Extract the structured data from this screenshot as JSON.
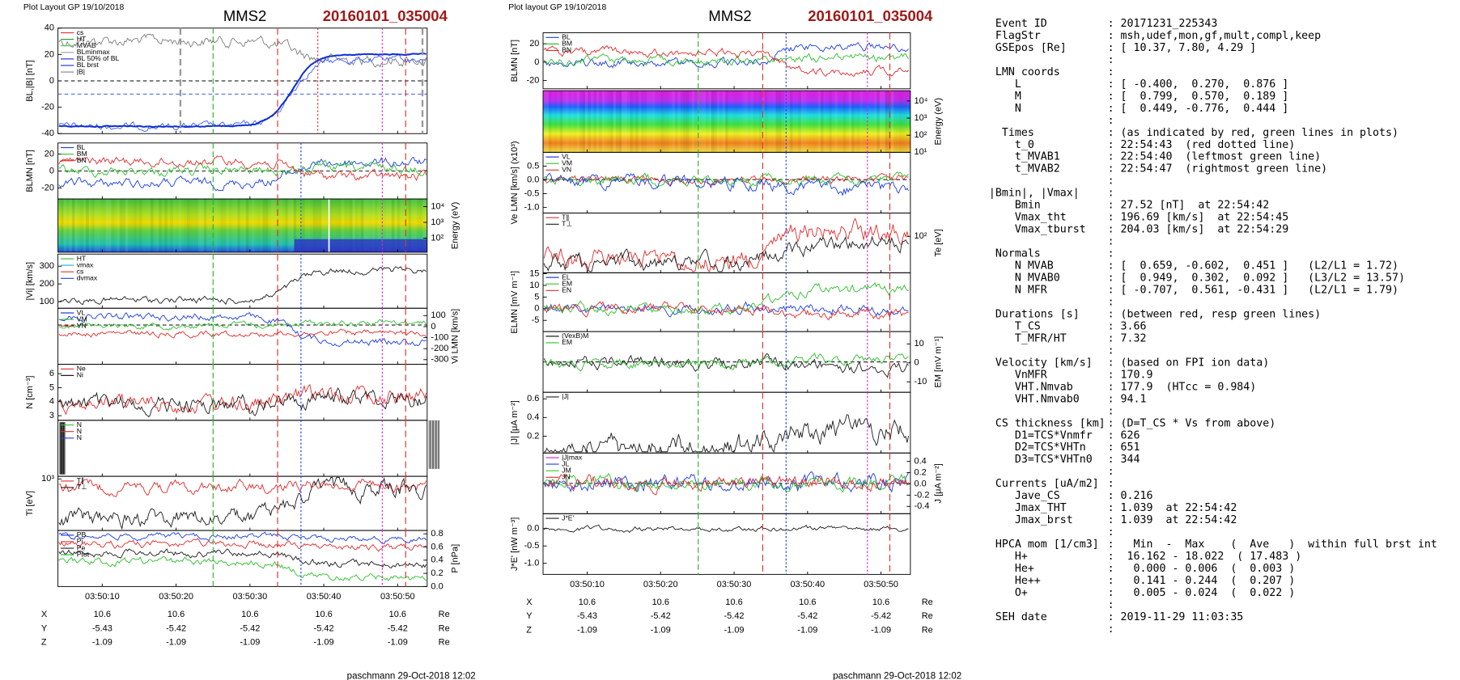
{
  "plots": [
    {
      "header": "Plot Layout GP 19/10/2018",
      "probe": "MMS2",
      "event": "20160101_035004",
      "xlim": [
        "03:50:04",
        "03:50:54"
      ],
      "xticks": [
        "03:50:10",
        "03:50:20",
        "03:50:30",
        "03:50:40",
        "03:50:50"
      ],
      "panels": [
        {
          "ylabel": "BL,|B| [nT]",
          "side": "left",
          "ylim": [
            -40,
            40
          ],
          "yticks": [
            40,
            20,
            0,
            -20,
            -40
          ],
          "legend": [
            {
              "text": "cs",
              "color": "#e03030"
            },
            {
              "text": "HT",
              "color": "#30a030"
            },
            {
              "text": "MVAB",
              "color": "#50d050"
            },
            {
              "text": "BLminmax",
              "color": "#a0a0a0"
            },
            {
              "text": "BL 50% of BL",
              "color": "#3040e0"
            },
            {
              "text": "BL brst",
              "color": "#1030d0"
            },
            {
              "text": "|B|",
              "color": "#808080"
            }
          ]
        },
        {
          "ylabel": "BLMN [nT]",
          "side": "left",
          "ylim": [
            -33,
            33
          ],
          "yticks": [
            20,
            0,
            -20
          ],
          "legend": [
            {
              "text": "BL",
              "color": "#2040e0"
            },
            {
              "text": "BM",
              "color": "#30c030"
            },
            {
              "text": "BN",
              "color": "#e03030"
            }
          ]
        },
        {
          "ylabel": "Energy (eV)",
          "side": "right",
          "kind": "spectrogram",
          "log": true,
          "ylim": [
            13,
            30000
          ],
          "yticks": [
            {
              "value": 10000,
              "label": "10⁴"
            },
            {
              "value": 1000,
              "label": "10³"
            },
            {
              "value": 100,
              "label": "10²"
            }
          ]
        },
        {
          "ylabel": "|Vi| [km/s]",
          "side": "left",
          "ylim": [
            63,
            368
          ],
          "yticks": [
            300,
            200,
            100
          ],
          "legend": [
            {
              "text": "HT",
              "color": "#30c030"
            },
            {
              "text": "vmax",
              "color": "#20b0d0"
            },
            {
              "text": "cs",
              "color": "#e03030"
            },
            {
              "text": "dvmax",
              "color": "#2040e0"
            }
          ]
        },
        {
          "ylabel": "Vi LMN [km/s]",
          "side": "right",
          "ylim": [
            -342,
            167
          ],
          "yticks": [
            100,
            0,
            -100,
            -200,
            -300
          ],
          "legend": [
            {
              "text": "VL",
              "color": "#2040e0"
            },
            {
              "text": "VM",
              "color": "#30c030"
            },
            {
              "text": "VN",
              "color": "#e03030"
            }
          ]
        },
        {
          "ylabel": "N [cm⁻³]",
          "side": "left",
          "ylim": [
            2.67,
            6.67
          ],
          "yticks": [
            6,
            5,
            4,
            3
          ],
          "legend": [
            {
              "text": "Ne",
              "color": "#e03030"
            },
            {
              "text": "Ni",
              "color": "#202020"
            }
          ]
        },
        {
          "side": "left",
          "legend": [
            {
              "text": "N",
              "color": "#30c030"
            },
            {
              "text": "N",
              "color": "#e03030"
            },
            {
              "text": "N",
              "color": "#2040e0"
            }
          ]
        },
        {
          "ylabel": "Ti [eV]",
          "side": "left",
          "log": true,
          "ylim": [
            150,
            1100
          ],
          "yticks": [
            {
              "value": 1000,
              "label": "10³"
            }
          ],
          "legend": [
            {
              "text": "T∥",
              "color": "#e03030"
            },
            {
              "text": "T⊥",
              "color": "#202020"
            }
          ]
        },
        {
          "ylabel": "P [nPa]",
          "side": "right",
          "ylim": [
            0,
            0.85
          ],
          "yticks": [
            0.8,
            0.6,
            0.4,
            0.2,
            {
              "value": 0,
              "label": "0.0"
            }
          ],
          "legend": [
            {
              "text": "PB",
              "color": "#2040e0"
            },
            {
              "text": "Pi",
              "color": "#e03030"
            },
            {
              "text": "Pe",
              "color": "#202020"
            },
            {
              "text": "Ptot",
              "color": "#30c030"
            }
          ]
        }
      ],
      "positions": [
        {
          "name": "X",
          "values": [
            "10.6",
            "10.6",
            "10.6",
            "10.6",
            "10.6"
          ],
          "unit": "Re"
        },
        {
          "name": "Y",
          "values": [
            "-5.43",
            "-5.42",
            "-5.42",
            "-5.42",
            "-5.42"
          ],
          "unit": "Re"
        },
        {
          "name": "Z",
          "values": [
            "-1.09",
            "-1.09",
            "-1.09",
            "-1.09",
            "-1.09"
          ],
          "unit": "Re"
        }
      ],
      "footer": "paschmann 29-Oct-2018 12:02"
    },
    {
      "header": "Plot layout GP 19/10/2018",
      "probe": "MMS2",
      "event": "20160101_035004",
      "xlim": [
        "03:50:04",
        "03:50:54"
      ],
      "xticks": [
        "03:50:10",
        "03:50:20",
        "03:50:30",
        "03:50:40",
        "03:50:50"
      ],
      "panels": [
        {
          "ylabel": "BLMN [nT]",
          "side": "left",
          "ylim": [
            -29,
            32
          ],
          "yticks": [
            20,
            0,
            -20
          ],
          "legend": [
            {
              "text": "BL",
              "color": "#2040e0"
            },
            {
              "text": "BM",
              "color": "#30c030"
            },
            {
              "text": "BN",
              "color": "#e03030"
            }
          ]
        },
        {
          "ylabel": "Energy (eV)",
          "side": "right",
          "kind": "spectrogram",
          "log": true,
          "ylim": [
            10,
            40000
          ],
          "yticks": [
            {
              "value": 10000,
              "label": "10⁴"
            },
            {
              "value": 1000,
              "label": "10³"
            },
            {
              "value": 100,
              "label": "10²"
            },
            {
              "value": 10,
              "label": "10¹"
            }
          ]
        },
        {
          "ylabel": "Ve LMN [km/s] (x10³)",
          "side": "left",
          "ylim": [
            -1.2,
            1.0
          ],
          "yticks": [
            0.5,
            {
              "value": 0,
              "label": "0.0"
            },
            -0.5,
            {
              "value": -1,
              "label": "-1.0"
            }
          ],
          "legend": [
            {
              "text": "VL",
              "color": "#2040e0"
            },
            {
              "text": "VM",
              "color": "#30c030"
            },
            {
              "text": "VN",
              "color": "#e03030"
            }
          ]
        },
        {
          "ylabel": "Te [eV]",
          "side": "right",
          "log": true,
          "ylim": [
            40,
            180
          ],
          "yticks": [
            {
              "value": 100,
              "label": "10²"
            }
          ],
          "legend": [
            {
              "text": "T∥",
              "color": "#e03030"
            },
            {
              "text": "T⊥",
              "color": "#202020"
            }
          ]
        },
        {
          "ylabel": "ELMN [mV m⁻¹]",
          "side": "left",
          "ylim": [
            -9.8,
            15.4
          ],
          "yticks": [
            15,
            10,
            5,
            0,
            -5
          ],
          "legend": [
            {
              "text": "EL",
              "color": "#2040e0"
            },
            {
              "text": "EM",
              "color": "#30c030"
            },
            {
              "text": "EN",
              "color": "#e03030"
            }
          ]
        },
        {
          "ylabel": "EM [mV m⁻¹]",
          "side": "right",
          "ylim": [
            -15.5,
            16.5
          ],
          "yticks": [
            10,
            0,
            -10
          ],
          "legend": [
            {
              "text": "(VexB)M",
              "color": "#202020"
            },
            {
              "text": "EM",
              "color": "#30c030"
            }
          ]
        },
        {
          "ylabel": "|J| [μA m⁻²]",
          "side": "left",
          "ylim": [
            0.02,
            0.67
          ],
          "yticks": [
            0.6,
            0.4,
            0.2
          ],
          "legend": [
            {
              "text": "|J|",
              "color": "#202020"
            }
          ]
        },
        {
          "ylabel": "J [μA m⁻²]",
          "side": "right",
          "ylim": [
            -0.53,
            0.55
          ],
          "yticks": [
            0.4,
            0.2,
            {
              "value": 0,
              "label": "0.0"
            },
            -0.2,
            -0.4
          ],
          "legend": [
            {
              "text": "|J|max",
              "color": "#d020d0"
            },
            {
              "text": "JL",
              "color": "#2040e0"
            },
            {
              "text": "JM",
              "color": "#30c030"
            },
            {
              "text": "JN",
              "color": "#e03030"
            }
          ]
        },
        {
          "ylabel": "J*E' [nW m⁻³]",
          "side": "left",
          "ylim": [
            -1.32,
            0.43
          ],
          "yticks": [
            {
              "value": 0,
              "label": "0.0"
            },
            -0.5,
            {
              "value": -1,
              "label": "-1.0"
            }
          ],
          "legend": [
            {
              "text": "J*E'",
              "color": "#202020"
            }
          ]
        }
      ],
      "positions": [
        {
          "name": "X",
          "values": [
            "10.6",
            "10.6",
            "10.6",
            "10.6",
            "10.6"
          ],
          "unit": "Re"
        },
        {
          "name": "Y",
          "values": [
            "-5.43",
            "-5.42",
            "-5.42",
            "-5.42",
            "-5.42"
          ],
          "unit": "Re"
        },
        {
          "name": "Z",
          "values": [
            "-1.09",
            "-1.09",
            "-1.09",
            "-1.09",
            "-1.09"
          ],
          "unit": "Re"
        }
      ],
      "footer": "paschmann 29-Oct-2018 12:02"
    }
  ],
  "listing": [
    {
      "label": " Event ID",
      "value": ": 20171231_225343"
    },
    {
      "label": " FlagStr",
      "value": ": msh,udef,mon,gf,mult,compl,keep"
    },
    {
      "label": " GSEpos [Re]",
      "value": ": [ 10.37, 7.80, 4.29 ]"
    },
    {
      "value": ":"
    },
    {
      "label": " LMN coords",
      "value": ":"
    },
    {
      "label": "    L",
      "value": ": [ -0.400,  0.270,  0.876 ]"
    },
    {
      "label": "    M",
      "value": ": [  0.799,  0.570,  0.189 ]"
    },
    {
      "label": "    N",
      "value": ": [  0.449, -0.776,  0.444 ]"
    },
    {
      "value": ":"
    },
    {
      "label": "  Times",
      "value": ": (as indicated by red, green lines in plots)"
    },
    {
      "label": "    t_0",
      "value": ": 22:54:43  (red dotted line)"
    },
    {
      "label": "    t_MVAB1",
      "value": ": 22:54:40  (leftmost green line)"
    },
    {
      "label": "    t_MVAB2",
      "value": ": 22:54:47  (rightmost green line)"
    },
    {
      "value": ":"
    },
    {
      "label": "|Bmin|, |Vmax|",
      "value": ":"
    },
    {
      "label": "    Bmin",
      "value": ": 27.52 [nT]  at 22:54:42"
    },
    {
      "label": "    Vmax_tht",
      "value": ": 196.69 [km/s]  at 22:54:45"
    },
    {
      "label": "    Vmax_tburst",
      "value": ": 204.03 [km/s]  at 22:54:29"
    },
    {
      "value": ":"
    },
    {
      "label": " Normals",
      "value": ":"
    },
    {
      "label": "    N MVAB",
      "value": ": [  0.659, -0.602,  0.451 ]   (L2/L1 = 1.72)"
    },
    {
      "label": "    N MVAB0",
      "value": ": [  0.949,  0.302,  0.092 ]   (L3/L2 = 13.57)"
    },
    {
      "label": "    N MFR",
      "value": ": [ -0.707,  0.561, -0.431 ]   (L2/L1 = 1.79)"
    },
    {
      "value": ":"
    },
    {
      "label": " Durations [s]",
      "value": ": (between red, resp green lines)"
    },
    {
      "label": "    T_CS",
      "value": ": 3.66"
    },
    {
      "label": "    T_MFR/HT",
      "value": ": 7.32"
    },
    {
      "value": ":"
    },
    {
      "label": " Velocity [km/s]",
      "value": ": (based on FPI ion data)"
    },
    {
      "label": "    VnMFR",
      "value": ": 170.9"
    },
    {
      "label": "    VHT.Nmvab",
      "value": ": 177.9  (HTcc = 0.984)"
    },
    {
      "label": "    VHT.Nmvab0",
      "value": ": 94.1"
    },
    {
      "value": ":"
    },
    {
      "label": " CS thickness [km]",
      "value": ": (D=T_CS * Vs from above)"
    },
    {
      "label": "    D1=TCS*Vnmfr",
      "value": ": 626"
    },
    {
      "label": "    D2=TCS*VHTn",
      "value": ": 651"
    },
    {
      "label": "    D3=TCS*VHTn0",
      "value": ": 344"
    },
    {
      "value": ":"
    },
    {
      "label": " Currents [uA/m2]",
      "value": ":"
    },
    {
      "label": "    Jave_CS",
      "value": ": 0.216"
    },
    {
      "label": "    Jmax_THT",
      "value": ": 1.039  at 22:54:42"
    },
    {
      "label": "    Jmax_brst",
      "value": ": 1.039  at 22:54:42"
    },
    {
      "value": ":"
    },
    {
      "label": " HPCA mom [1/cm3]",
      "value": ":   Min  -  Max    (  Ave   )  within full brst int"
    },
    {
      "label": "    H+",
      "value": ":  16.162 - 18.022  ( 17.483 )"
    },
    {
      "label": "    He+",
      "value": ":   0.000 - 0.006  (  0.003 )"
    },
    {
      "label": "    He++",
      "value": ":   0.141 - 0.244  (  0.207 )"
    },
    {
      "label": "    O+",
      "value": ":   0.005 - 0.024  (  0.022 )"
    },
    {
      "value": ":"
    },
    {
      "label": " SEH date",
      "value": ": 2019-11-29 11:03:35"
    },
    {
      "value": ":"
    }
  ]
}
